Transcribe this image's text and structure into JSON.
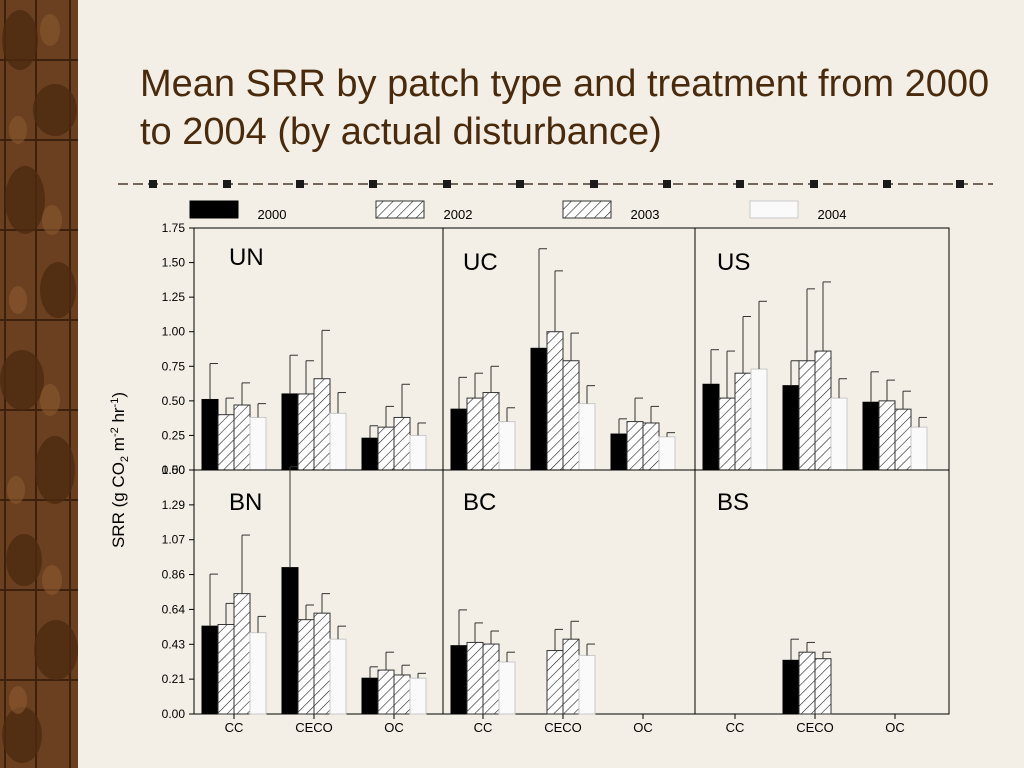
{
  "title": "Mean SRR by patch type and treatment from 2000 to 2004 (by actual disturbance)",
  "colors": {
    "title": "#4a2a0c",
    "background": "#f3efe6",
    "border": "#6b4020"
  },
  "chart_data": {
    "type": "bar",
    "ylabel": "SRR (g CO2 m-2 hr-1)",
    "legend": {
      "placement": "top",
      "entries": [
        "2000",
        "2002",
        "2003",
        "2004"
      ]
    },
    "series_styles": [
      "solid-black",
      "hatched",
      "hatched",
      "light-fill"
    ],
    "categories": [
      "CC",
      "CECO",
      "OC"
    ],
    "grid": false,
    "rows": [
      {
        "ylim": [
          0,
          1.75
        ],
        "yticks": [
          "1.75",
          "1.50",
          "1.25",
          "1.00",
          "0.75",
          "0.50",
          "0.25",
          "0.00"
        ]
      },
      {
        "ylim": [
          0,
          1.5
        ],
        "yticks": [
          "1.50",
          "1.29",
          "1.07",
          "0.86",
          "0.64",
          "0.43",
          "0.21",
          "0.00"
        ]
      }
    ],
    "panels": [
      {
        "label": "UN",
        "row": 0,
        "col": 0,
        "values": [
          [
            0.51,
            0.4,
            0.47,
            0.38
          ],
          [
            0.55,
            0.55,
            0.66,
            0.41
          ],
          [
            0.23,
            0.31,
            0.38,
            0.25
          ]
        ],
        "errors": [
          [
            0.77,
            0.52,
            0.63,
            0.48
          ],
          [
            0.83,
            0.79,
            1.01,
            0.56
          ],
          [
            0.32,
            0.46,
            0.62,
            0.34
          ]
        ]
      },
      {
        "label": "UC",
        "row": 0,
        "col": 1,
        "values": [
          [
            0.44,
            0.52,
            0.56,
            0.35
          ],
          [
            0.88,
            1.0,
            0.79,
            0.48
          ],
          [
            0.26,
            0.35,
            0.34,
            0.24
          ]
        ],
        "errors": [
          [
            0.67,
            0.7,
            0.75,
            0.45
          ],
          [
            1.6,
            1.44,
            0.99,
            0.61
          ],
          [
            0.37,
            0.52,
            0.46,
            0.27
          ]
        ]
      },
      {
        "label": "US",
        "row": 0,
        "col": 2,
        "values": [
          [
            0.62,
            0.52,
            0.7,
            0.73
          ],
          [
            0.61,
            0.79,
            0.86,
            0.52
          ],
          [
            0.49,
            0.5,
            0.44,
            0.31
          ]
        ],
        "errors": [
          [
            0.87,
            0.86,
            1.11,
            1.22
          ],
          [
            0.79,
            1.31,
            1.36,
            0.66
          ],
          [
            0.71,
            0.65,
            0.57,
            0.38
          ]
        ]
      },
      {
        "label": "BN",
        "row": 1,
        "col": 0,
        "values": [
          [
            0.54,
            0.55,
            0.74,
            0.5
          ],
          [
            0.9,
            0.58,
            0.62,
            0.46
          ],
          [
            0.22,
            0.27,
            0.24,
            0.22
          ]
        ],
        "errors": [
          [
            0.86,
            0.68,
            1.1,
            0.6
          ],
          [
            1.52,
            0.67,
            0.74,
            0.54
          ],
          [
            0.29,
            0.38,
            0.3,
            0.25
          ]
        ]
      },
      {
        "label": "BC",
        "row": 1,
        "col": 1,
        "values": [
          [
            0.42,
            0.44,
            0.43,
            0.32
          ],
          [
            null,
            0.39,
            0.46,
            0.36
          ],
          [
            null,
            null,
            null,
            null
          ]
        ],
        "errors": [
          [
            0.64,
            0.56,
            0.51,
            0.38
          ],
          [
            null,
            0.52,
            0.57,
            0.43
          ],
          [
            null,
            null,
            null,
            null
          ]
        ]
      },
      {
        "label": "BS",
        "row": 1,
        "col": 2,
        "values": [
          [
            null,
            null,
            null,
            null
          ],
          [
            0.33,
            0.38,
            0.34,
            null
          ],
          [
            null,
            null,
            null,
            null
          ]
        ],
        "errors": [
          [
            null,
            null,
            null,
            null
          ],
          [
            0.46,
            0.44,
            0.38,
            null
          ],
          [
            null,
            null,
            null,
            null
          ]
        ]
      }
    ]
  }
}
